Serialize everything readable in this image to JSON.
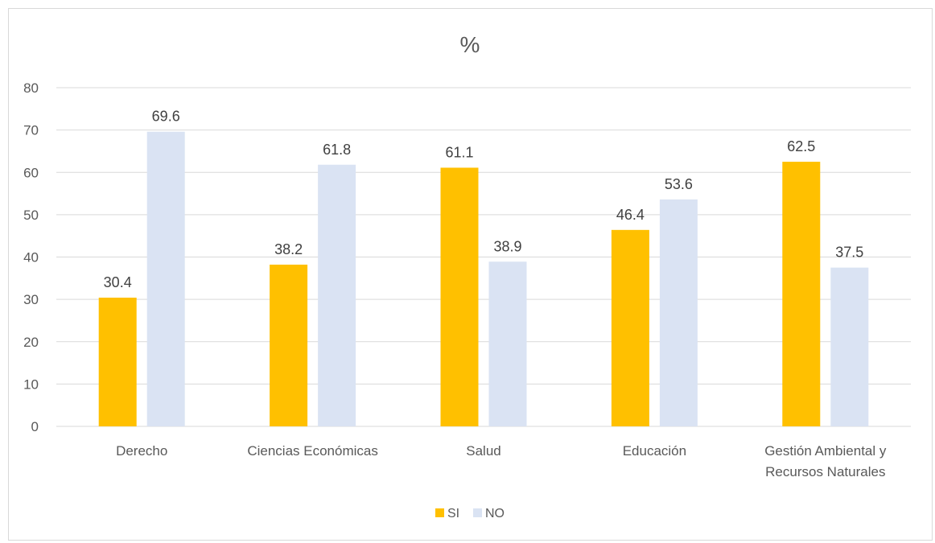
{
  "chart_data": {
    "type": "bar",
    "title": "%",
    "categories": [
      "Derecho",
      "Ciencias Económicas",
      "Salud",
      "Educación",
      "Gestión Ambiental y\nRecursos Naturales"
    ],
    "series": [
      {
        "name": "SI",
        "color": "#FFC000",
        "values": [
          30.4,
          38.2,
          61.1,
          46.4,
          62.5
        ]
      },
      {
        "name": "NO",
        "color": "#DAE3F3",
        "values": [
          69.6,
          61.8,
          38.9,
          53.6,
          37.5
        ]
      }
    ],
    "ylim": [
      0,
      80
    ],
    "yticks": [
      0,
      10,
      20,
      30,
      40,
      50,
      60,
      70,
      80
    ],
    "grid": true,
    "legend_position": "bottom"
  }
}
